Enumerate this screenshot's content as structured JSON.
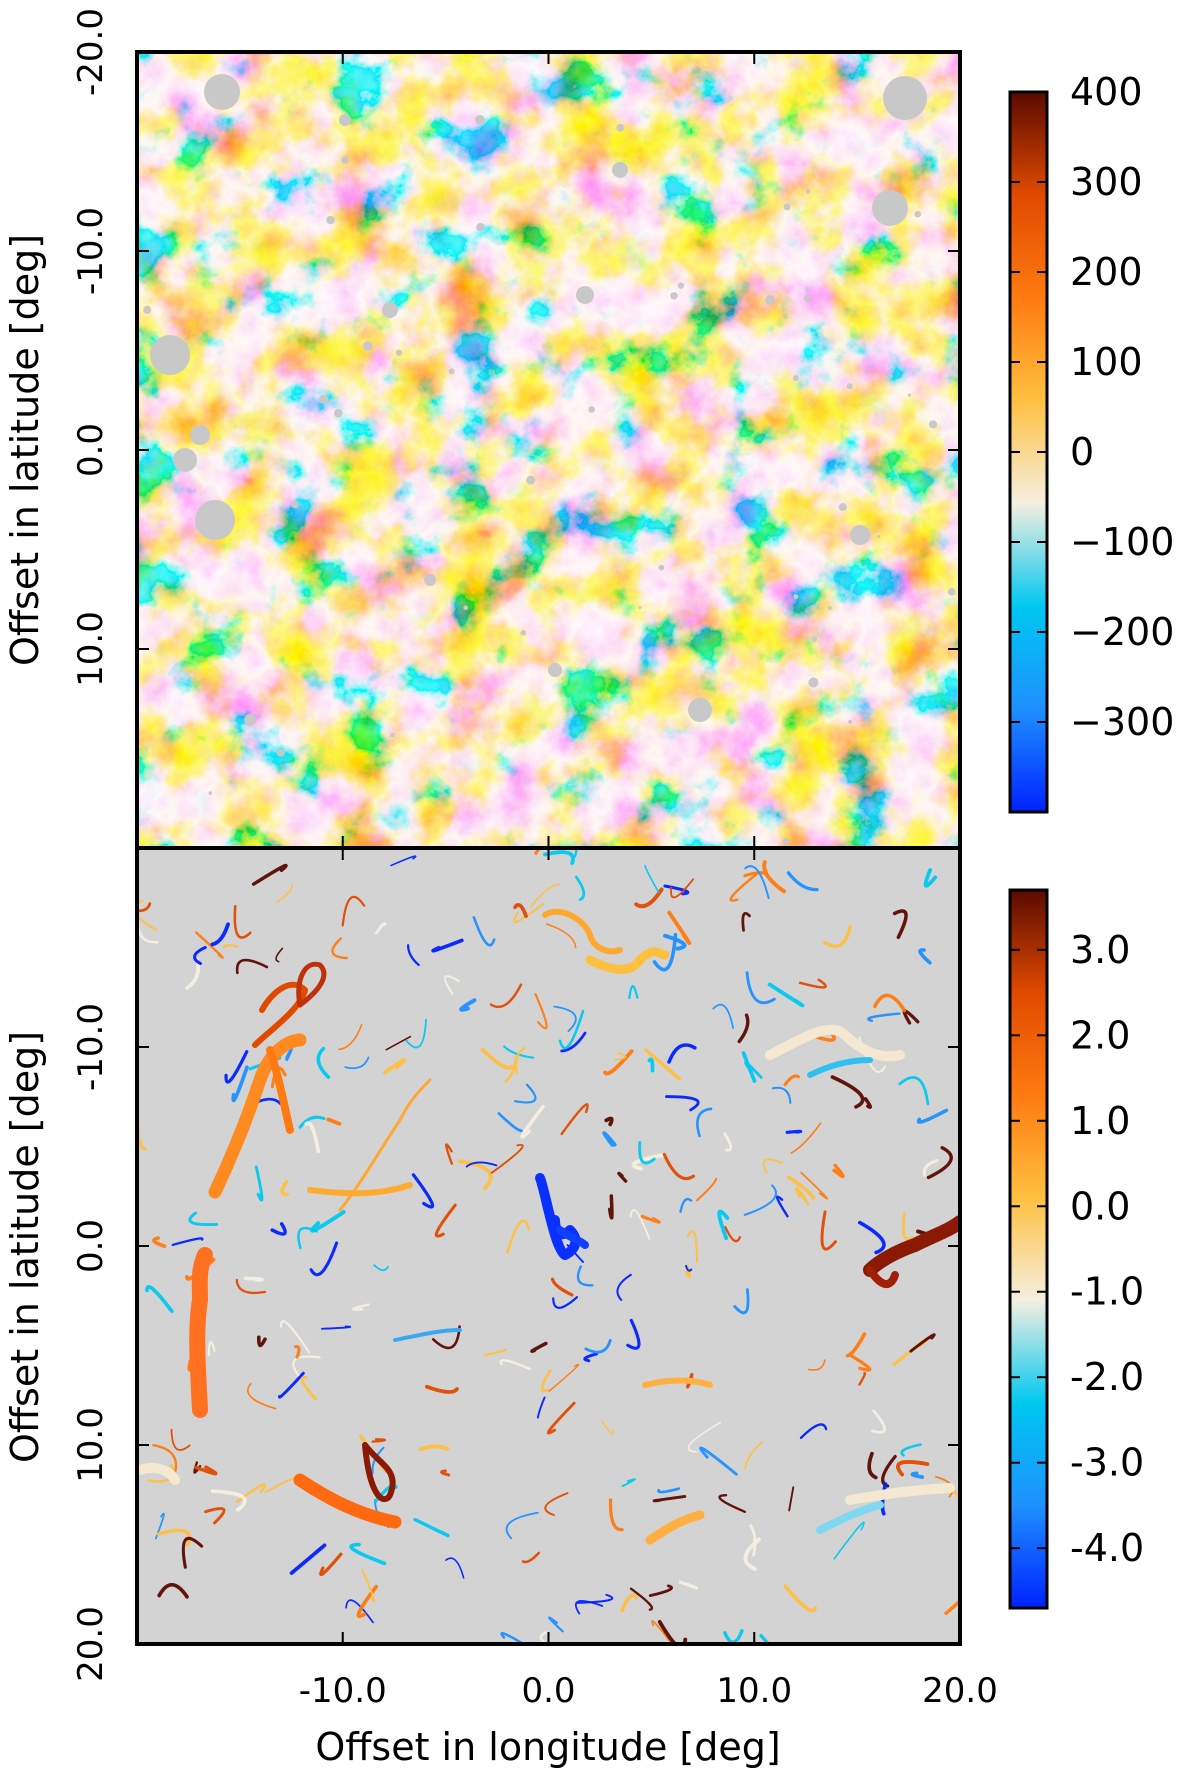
{
  "chart_data": [
    {
      "type": "heatmap",
      "panel": "top",
      "ylabel": "Offset in latitude [deg]",
      "xlim": [
        -20,
        20
      ],
      "ylim": [
        -20,
        20
      ],
      "y_inverted": true,
      "yticks": [
        -20,
        -10,
        0,
        10
      ],
      "yticklabels": [
        "-20.0",
        "-10.0",
        "0.0",
        "10.0"
      ],
      "colorbar": {
        "ticks": [
          400,
          300,
          200,
          100,
          0,
          -100,
          -200,
          -300
        ],
        "ticklabels": [
          "400",
          "300",
          "200",
          "100",
          "0",
          "−100",
          "−200",
          "−300"
        ],
        "range": [
          -400,
          400
        ],
        "colormap": [
          "#0022ff",
          "#1e90ff",
          "#00c8f0",
          "#f5efe0",
          "#ffc040",
          "#ff7a10",
          "#e04a00",
          "#5a0a00"
        ]
      },
      "masked_color": "#c8c8c8"
    },
    {
      "type": "heatmap",
      "panel": "bottom",
      "xlabel": "Offset in longitude [deg]",
      "ylabel": "Offset in latitude [deg]",
      "xlim": [
        -20,
        20
      ],
      "ylim": [
        -20,
        20
      ],
      "y_inverted": true,
      "xticks": [
        -10,
        0,
        10,
        20
      ],
      "xticklabels": [
        "-10.0",
        "0.0",
        "10.0",
        "20.0"
      ],
      "yticks": [
        -10,
        0,
        10,
        20
      ],
      "yticklabels": [
        "-10.0",
        "0.0",
        "10.0",
        "20.0"
      ],
      "colorbar": {
        "ticks": [
          3,
          2,
          1,
          0,
          -1,
          -2,
          -3,
          -4
        ],
        "ticklabels": [
          "3.0",
          "2.0",
          "1.0",
          "0.0",
          "-1.0",
          "-2.0",
          "-3.0",
          "-4.0"
        ],
        "range": [
          -4.7,
          3.7
        ],
        "colormap": [
          "#0022ff",
          "#1e90ff",
          "#00c8f0",
          "#f5efe0",
          "#ffc040",
          "#ff7a10",
          "#e04a00",
          "#5a0a00"
        ]
      },
      "background_color": "#d3d3d3"
    }
  ]
}
